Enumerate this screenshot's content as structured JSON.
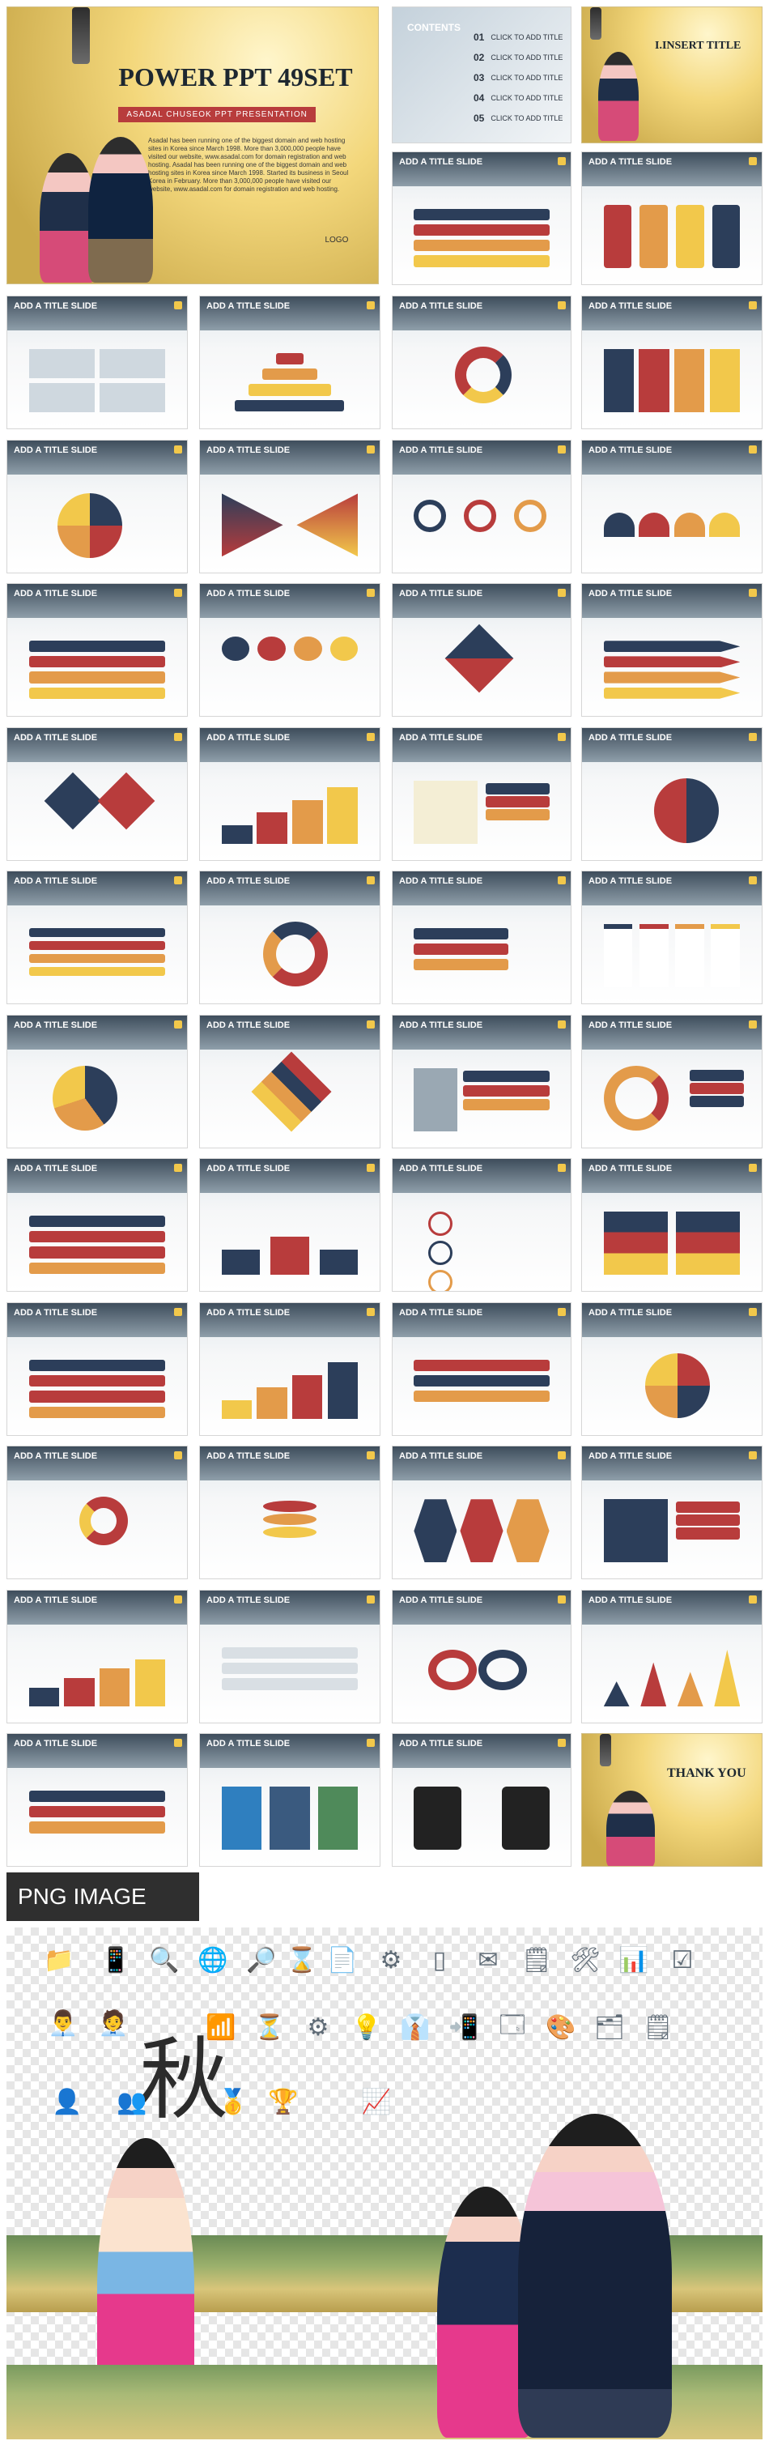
{
  "hero": {
    "title": "POWER PPT 49SET",
    "subtitle": "ASADAL CHUSEOK PPT PRESENTATION",
    "paragraph": "Asadal has been running one of the biggest domain and web hosting sites in Korea since March 1998. More than 3,000,000 people have visited our website, www.asadal.com for domain registration and web hosting. Asadal has been running one of the biggest domain and web hosting sites in Korea since March 1998. Started its business in Seoul Korea in February. More than 3,000,000 people have visited our website, www.asadal.com for domain registration and web hosting.",
    "logo": "LOGO"
  },
  "contents": {
    "title": "CONTENTS",
    "items": [
      {
        "num": "01",
        "label": "CLICK TO ADD TITLE"
      },
      {
        "num": "02",
        "label": "CLICK TO ADD TITLE"
      },
      {
        "num": "03",
        "label": "CLICK TO ADD TITLE"
      },
      {
        "num": "04",
        "label": "CLICK TO ADD TITLE"
      },
      {
        "num": "05",
        "label": "CLICK TO ADD TITLE"
      }
    ]
  },
  "insert_title": "I.INSERT TITLE",
  "slide_title": "ADD A TITLE SLIDE",
  "thank_you": "THANK YOU",
  "png_section": {
    "label": "PNG IMAGE"
  },
  "colors": {
    "accent_red": "#b83c3c",
    "accent_navy": "#2c3e5a",
    "accent_yellow": "#f2c84b",
    "accent_orange": "#e39b4a"
  }
}
